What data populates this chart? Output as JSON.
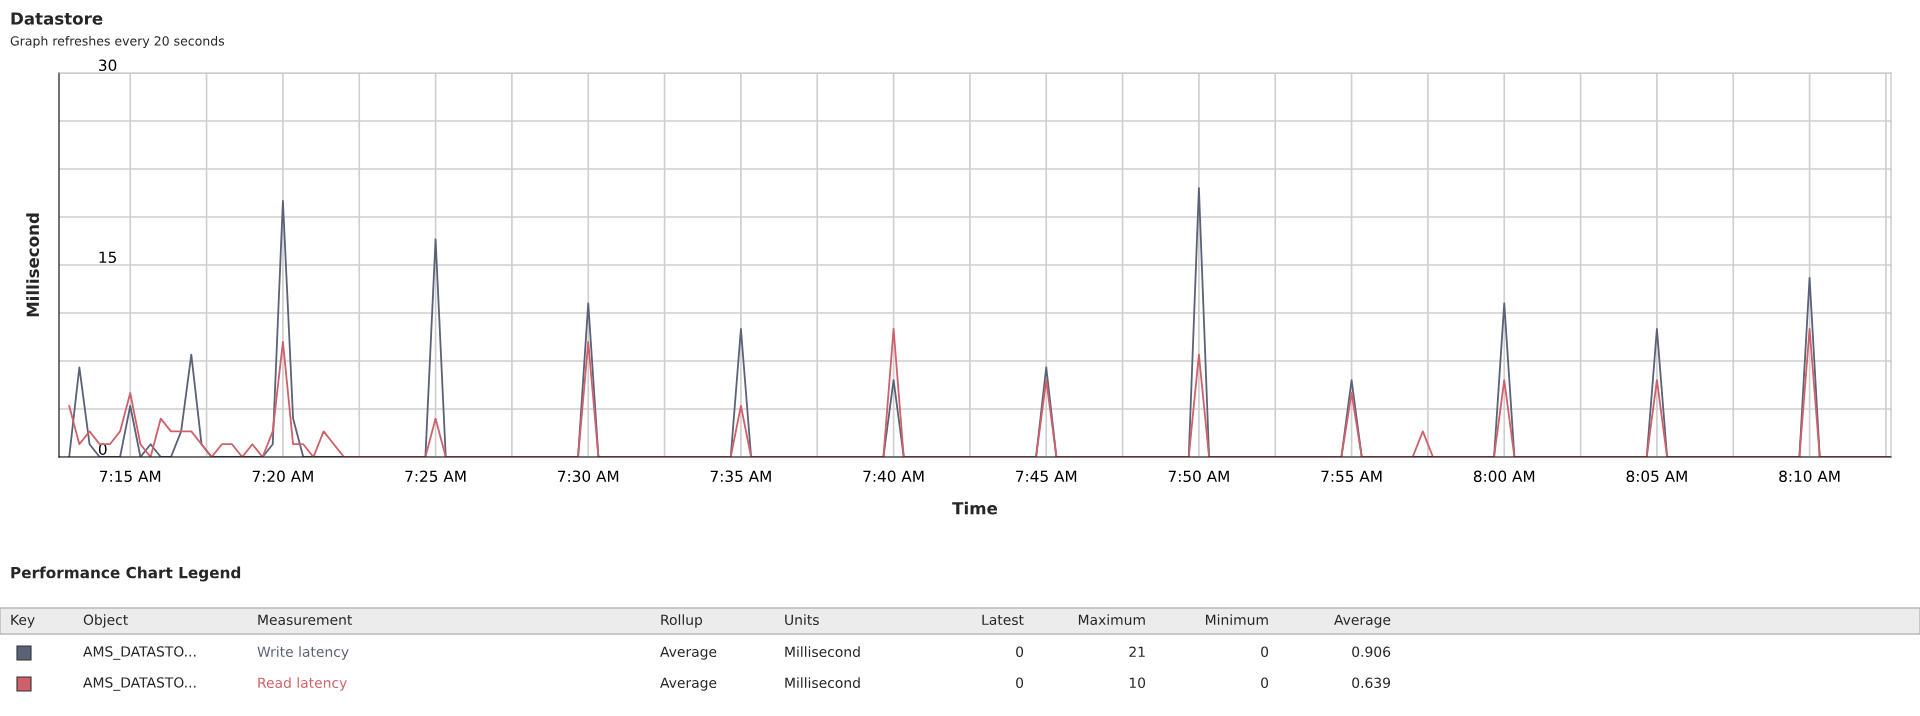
{
  "chart_data": {
    "type": "line",
    "title": "Datastore",
    "subtitle": "Graph refreshes every 20 seconds",
    "xlabel": "Time",
    "ylabel": "Millisecond",
    "xlim": [
      7.211111,
      8.211111
    ],
    "xticks": [
      {
        "value": 7.25,
        "label": "7:15 AM"
      },
      {
        "value": 7.291667,
        "label": null
      },
      {
        "value": 7.333333,
        "label": "7:20 AM"
      },
      {
        "value": 7.375,
        "label": null
      },
      {
        "value": 7.416667,
        "label": "7:25 AM"
      },
      {
        "value": 7.458333,
        "label": null
      },
      {
        "value": 7.5,
        "label": "7:30 AM"
      },
      {
        "value": 7.541667,
        "label": null
      },
      {
        "value": 7.583333,
        "label": "7:35 AM"
      },
      {
        "value": 7.625,
        "label": null
      },
      {
        "value": 7.666667,
        "label": "7:40 AM"
      },
      {
        "value": 7.708333,
        "label": null
      },
      {
        "value": 7.75,
        "label": "7:45 AM"
      },
      {
        "value": 7.791667,
        "label": null
      },
      {
        "value": 7.833333,
        "label": "7:50 AM"
      },
      {
        "value": 7.875,
        "label": null
      },
      {
        "value": 7.916667,
        "label": "7:55 AM"
      },
      {
        "value": 7.958333,
        "label": null
      },
      {
        "value": 8.0,
        "label": "8:00 AM"
      },
      {
        "value": 8.041667,
        "label": null
      },
      {
        "value": 8.083333,
        "label": "8:05 AM"
      },
      {
        "value": 8.125,
        "label": null
      },
      {
        "value": 8.166667,
        "label": "8:10 AM"
      },
      {
        "value": 8.208333,
        "label": null
      }
    ],
    "ylim": [
      0,
      30
    ],
    "yticks": [
      0,
      {
        "value": 3.75,
        "label": null
      },
      {
        "value": 7.5,
        "label": null
      },
      {
        "value": 11.25,
        "label": null
      },
      15,
      {
        "value": 18.75,
        "label": null
      },
      {
        "value": 22.5,
        "label": null
      },
      {
        "value": 26.25,
        "label": null
      },
      30
    ],
    "grid": true,
    "legend": "bottom",
    "marker": "none",
    "line_style": "solid",
    "series": [
      {
        "name": "Write latency",
        "color": "#5a6278",
        "x": [
          7.216667,
          7.222222,
          7.227778,
          7.233333,
          7.244444,
          7.25,
          7.255556,
          7.261111,
          7.266667,
          7.272222,
          7.277778,
          7.283333,
          7.288889,
          7.294444,
          7.322222,
          7.327778,
          7.333333,
          7.338889,
          7.344444,
          7.411111,
          7.416667,
          7.422222,
          7.494444,
          7.5,
          7.505556,
          7.577778,
          7.583333,
          7.588889,
          7.661111,
          7.666667,
          7.672222,
          7.744444,
          7.75,
          7.755556,
          7.827778,
          7.833333,
          7.838889,
          7.911111,
          7.916667,
          7.922222,
          7.994444,
          8.0,
          8.005556,
          8.077778,
          8.083333,
          8.088889,
          8.161111,
          8.166667,
          8.172222,
          8.211111
        ],
        "values": [
          0,
          7,
          1,
          0,
          0,
          4,
          0,
          1,
          0,
          0,
          2,
          8,
          1,
          0,
          0,
          1,
          20,
          3,
          0,
          0,
          17,
          0,
          0,
          12,
          0,
          0,
          10,
          0,
          0,
          6,
          0,
          0,
          7,
          0,
          0,
          21,
          0,
          0,
          6,
          0,
          0,
          12,
          0,
          0,
          10,
          0,
          0,
          14,
          0,
          0
        ]
      },
      {
        "name": "Read latency",
        "color": "#d0616a",
        "x": [
          7.216667,
          7.222222,
          7.227778,
          7.233333,
          7.238889,
          7.244444,
          7.25,
          7.255556,
          7.261111,
          7.266667,
          7.272222,
          7.283333,
          7.288889,
          7.294444,
          7.3,
          7.305556,
          7.311111,
          7.316667,
          7.322222,
          7.327778,
          7.333333,
          7.338889,
          7.344444,
          7.35,
          7.355556,
          7.366667,
          7.411111,
          7.416667,
          7.422222,
          7.494444,
          7.5,
          7.505556,
          7.577778,
          7.583333,
          7.588889,
          7.661111,
          7.666667,
          7.672222,
          7.744444,
          7.75,
          7.755556,
          7.827778,
          7.833333,
          7.838889,
          7.911111,
          7.916667,
          7.922222,
          7.95,
          7.955556,
          7.961111,
          7.994444,
          8.0,
          8.005556,
          8.077778,
          8.083333,
          8.088889,
          8.161111,
          8.166667,
          8.172222,
          8.211111
        ],
        "values": [
          4,
          1,
          2,
          1,
          1,
          2,
          5,
          1,
          0,
          3,
          2,
          2,
          1,
          0,
          1,
          1,
          0,
          1,
          0,
          2,
          9,
          1,
          1,
          0,
          2,
          0,
          0,
          3,
          0,
          0,
          9,
          0,
          0,
          4,
          0,
          0,
          10,
          0,
          0,
          6,
          0,
          0,
          8,
          0,
          0,
          5,
          0,
          0,
          2,
          0,
          0,
          6,
          0,
          0,
          6,
          0,
          0,
          10,
          0,
          0
        ]
      }
    ],
    "annotations": [
      "Performance Chart Legend",
      "Key",
      "Object",
      "Measurement",
      "Rollup",
      "Units",
      "Latest",
      "Maximum",
      "Minimum",
      "Average",
      "AMS_DATASTO...",
      "Average",
      "Millisecond",
      "0",
      "21",
      "0",
      "0.906",
      "AMS_DATASTO...",
      "Average",
      "Millisecond",
      "0",
      "10",
      "0",
      "0.639"
    ]
  }
}
